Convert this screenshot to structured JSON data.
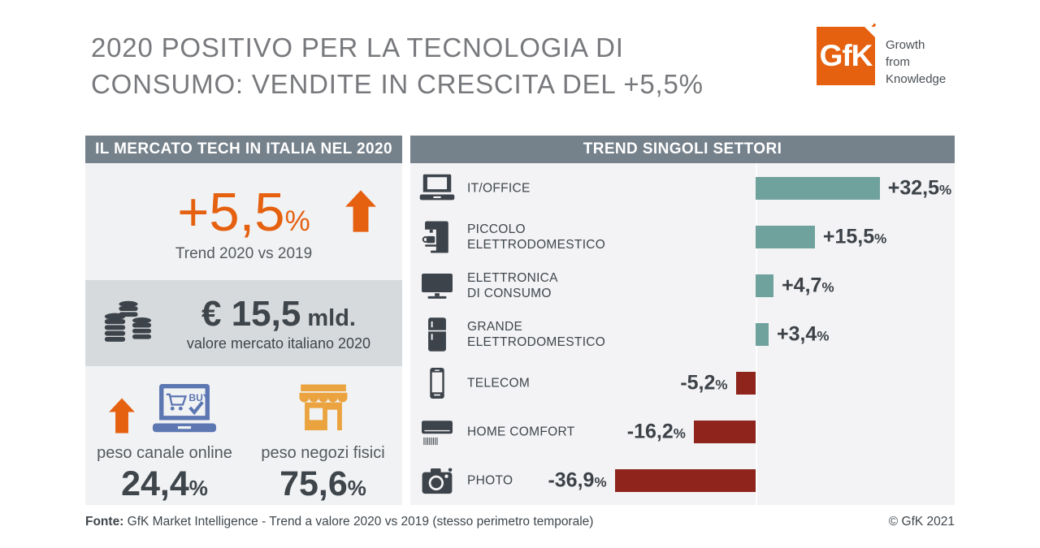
{
  "title": {
    "lines": [
      "2020 POSITIVO PER LA TECNOLOGIA DI",
      "CONSUMO: VENDITE IN CRESCITA DEL +5,5%"
    ]
  },
  "logo": {
    "text": "GfK",
    "tagline_lines": [
      "Growth",
      "from",
      "Knowledge"
    ]
  },
  "units": {
    "percent_sign": "%"
  },
  "left_panel": {
    "header": "IL MERCATO TECH IN ITALIA NEL 2020",
    "trend": {
      "value": "+5,5",
      "caption": "Trend 2020 vs 2019"
    },
    "market_value": {
      "value": "€ 15,5",
      "unit": "mld.",
      "caption": "valore mercato italiano 2020"
    },
    "channels": {
      "online": {
        "label": "peso canale online",
        "value": "24,4",
        "icons": [
          "up-arrow",
          "online-laptop"
        ],
        "buy_text": "BUY"
      },
      "stores": {
        "label": "peso negozi fisici",
        "value": "75,6",
        "icon": "store"
      }
    }
  },
  "right_panel": {
    "header": "TREND SINGOLI SETTORI",
    "sectors": [
      {
        "label_lines": [
          "IT/OFFICE"
        ],
        "value_label": "+32,5",
        "icon": "laptop"
      },
      {
        "label_lines": [
          "PICCOLO",
          "ELETTRODOMESTICO"
        ],
        "value_label": "+15,5",
        "icon": "coffee-machine"
      },
      {
        "label_lines": [
          "ELETTRONICA",
          "DI CONSUMO"
        ],
        "value_label": "+4,7",
        "icon": "tv"
      },
      {
        "label_lines": [
          "GRANDE",
          "ELETTRODOMESTICO"
        ],
        "value_label": "+3,4",
        "icon": "fridge"
      },
      {
        "label_lines": [
          "TELECOM"
        ],
        "value_label": "-5,2",
        "icon": "smartphone"
      },
      {
        "label_lines": [
          "HOME COMFORT"
        ],
        "value_label": "-16,2",
        "icon": "air-conditioner"
      },
      {
        "label_lines": [
          "PHOTO"
        ],
        "value_label": "-36,9",
        "icon": "camera"
      }
    ]
  },
  "footer": {
    "source_label": "Fonte:",
    "source_text": "GfK Market Intelligence  - Trend a valore 2020 vs 2019 (stesso perimetro temporale)",
    "copyright": "© GfK 2021"
  },
  "colors": {
    "brand_orange": "#e5600f",
    "store_orange": "#eaa33e",
    "online_blue": "#5c77b2",
    "header_slate": "#75818b",
    "positive_teal": "#6fa29d",
    "negative_red": "#8e241b",
    "dark_text": "#3c434a",
    "light_panel": "#f1f2f4",
    "mid_band": "#d7dadc"
  },
  "chart_data": {
    "type": "bar",
    "orientation": "horizontal",
    "title": "TREND SINGOLI SETTORI",
    "categories": [
      "IT/OFFICE",
      "PICCOLO ELETTRODOMESTICO",
      "ELETTRONICA DI CONSUMO",
      "GRANDE ELETTRODOMESTICO",
      "TELECOM",
      "HOME COMFORT",
      "PHOTO"
    ],
    "values": [
      32.5,
      15.5,
      4.7,
      3.4,
      -5.2,
      -16.2,
      -36.9
    ],
    "value_labels": [
      "+32,5%",
      "+15,5%",
      "+4,7%",
      "+3,4%",
      "-5,2%",
      "-16,2%",
      "-36,9%"
    ],
    "unit": "percent (trend a valore 2020 vs 2019)",
    "xlim": [
      -40,
      52
    ],
    "grid": false,
    "legend": false,
    "positive_color": "#6fa29d",
    "negative_color": "#8e241b"
  }
}
